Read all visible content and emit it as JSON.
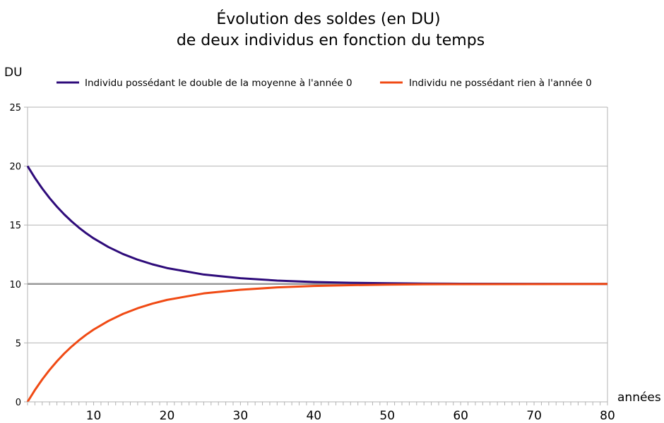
{
  "chart_data": {
    "type": "line",
    "title_lines": [
      "Évolution des soldes (en DU)",
      "de deux individus en fonction du temps"
    ],
    "ylabel": "DU",
    "xlabel": "années",
    "xlim": [
      1,
      80
    ],
    "ylim": [
      0,
      25
    ],
    "yticks": [
      0,
      5,
      10,
      15,
      20,
      25
    ],
    "xticks_labeled": [
      10,
      20,
      30,
      40,
      50,
      60,
      70,
      80
    ],
    "x_minor_step": 1,
    "grid": "horizontal",
    "legend_position": "top",
    "reference_line": {
      "y": 10,
      "color": "#999999"
    },
    "series": [
      {
        "name": "Individu possédant le double de la moyenne à l'année 0",
        "color": "#2e0b7a",
        "x": [
          1,
          2,
          3,
          4,
          5,
          6,
          7,
          8,
          9,
          10,
          12,
          14,
          16,
          18,
          20,
          25,
          30,
          35,
          40,
          45,
          50,
          55,
          60,
          70,
          80
        ],
        "y": [
          20.0,
          19.0,
          18.1,
          17.29,
          16.56,
          15.9,
          15.31,
          14.78,
          14.3,
          13.87,
          13.14,
          12.54,
          12.06,
          11.67,
          11.35,
          10.8,
          10.49,
          10.29,
          10.17,
          10.1,
          10.06,
          10.03,
          10.02,
          10.01,
          10.0
        ]
      },
      {
        "name": "Individu ne possédant rien à l'année 0",
        "color": "#f04a14",
        "x": [
          1,
          2,
          3,
          4,
          5,
          6,
          7,
          8,
          9,
          10,
          12,
          14,
          16,
          18,
          20,
          25,
          30,
          35,
          40,
          45,
          50,
          55,
          60,
          70,
          80
        ],
        "y": [
          0.0,
          1.0,
          1.9,
          2.71,
          3.44,
          4.1,
          4.69,
          5.22,
          5.7,
          6.13,
          6.86,
          7.46,
          7.94,
          8.33,
          8.65,
          9.2,
          9.51,
          9.71,
          9.83,
          9.9,
          9.94,
          9.97,
          9.98,
          9.99,
          10.0
        ]
      }
    ]
  }
}
